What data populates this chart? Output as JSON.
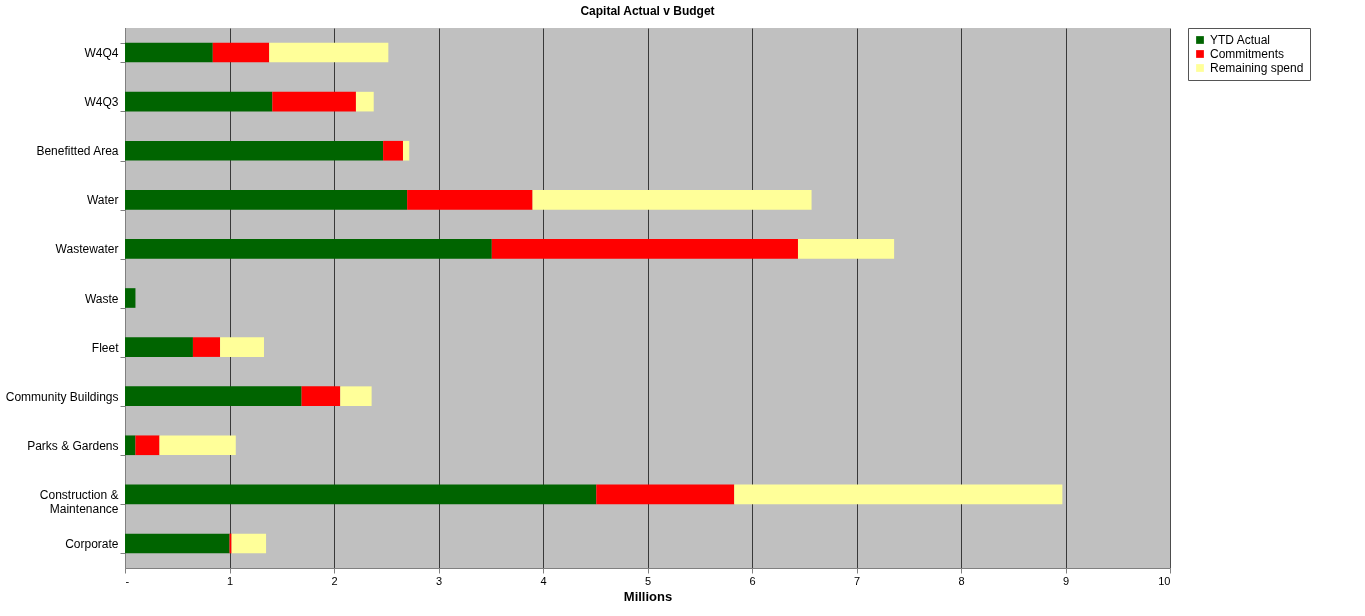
{
  "chart_data": {
    "type": "bar",
    "orientation": "horizontal",
    "stacked": true,
    "title": "Capital Actual v Budget",
    "xlabel": "Millions",
    "categories": [
      "W4Q4",
      "W4Q3",
      "Benefitted Area",
      "Water",
      "Wastewater",
      "Waste",
      "Fleet",
      "Community Buildings",
      "Parks & Gardens",
      "Construction & Maintenance",
      "Corporate"
    ],
    "series": [
      {
        "name": "YTD Actual",
        "color": "#006400",
        "values": [
          0.84,
          1.41,
          2.47,
          2.7,
          3.51,
          0.1,
          0.65,
          1.69,
          0.1,
          4.51,
          1.0
        ]
      },
      {
        "name": "Commitments",
        "color": "#ff0000",
        "values": [
          0.54,
          0.8,
          0.19,
          1.2,
          2.93,
          0,
          0.26,
          0.37,
          0.23,
          1.32,
          0.02
        ]
      },
      {
        "name": "Remaining spend",
        "color": "#ffff99",
        "values": [
          1.14,
          0.17,
          0.06,
          2.67,
          0.92,
          0,
          0.42,
          0.3,
          0.73,
          3.14,
          0.33
        ]
      }
    ],
    "xlim": [
      0,
      10
    ],
    "xticks": [
      {
        "value": 0,
        "label": "-"
      },
      1,
      2,
      3,
      4,
      5,
      6,
      7,
      8,
      9,
      10
    ],
    "grid": "x",
    "legend": "top right"
  }
}
